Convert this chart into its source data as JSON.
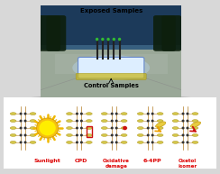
{
  "title_top": "Exposed Samples",
  "title_bottom": "Control Samples",
  "labels": [
    "Sunlight",
    "CPD",
    "Oxidative\ndamage",
    "6-4PP",
    "Oxetol\nisomer"
  ],
  "label_colors": [
    "#dd0000",
    "#dd0000",
    "#dd0000",
    "#dd0000",
    "#dd0000"
  ],
  "dna_color_main": "#d4c84a",
  "dna_color_edge": "#b8a030",
  "dna_backbone_color": "#c8a060",
  "sun_color_outer": "#f5c020",
  "sun_color_inner": "#ffee00",
  "cpd_box_color": "#cc1111",
  "arrow_color_yellow": "#f0a000",
  "arrow_color_red": "#cc1111",
  "damage_dot_color": "#cc1111",
  "panel_bg": "#ffffff",
  "fig_bg": "#d8d8d8",
  "photo_sky_top": "#1a3050",
  "photo_sky_bot": "#3a6080",
  "photo_ground": "#c0c8c0",
  "photo_road": "#a8b0a8"
}
